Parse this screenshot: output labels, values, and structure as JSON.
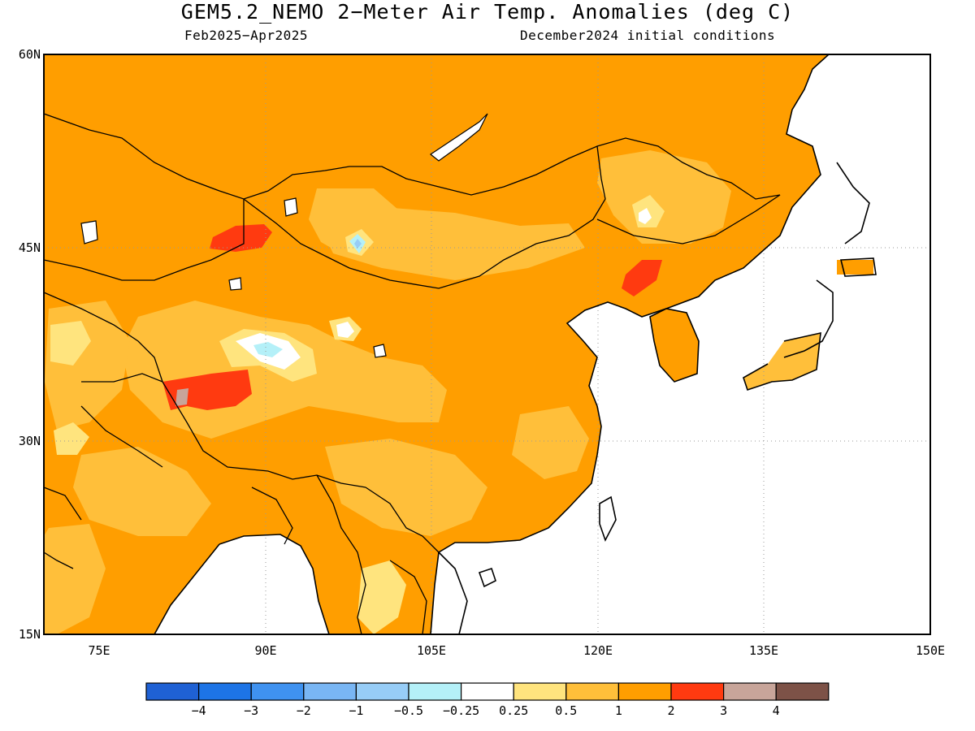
{
  "title": "GEM5.2_NEMO 2−Meter Air Temp. Anomalies (deg C)",
  "subtitle_left": "Feb2025−Apr2025",
  "subtitle_right": "December2024 initial conditions",
  "lat_labels": [
    "60N",
    "45N",
    "30N",
    "15N"
  ],
  "lon_labels": [
    "75E",
    "90E",
    "105E",
    "120E",
    "135E",
    "150E"
  ],
  "colorbar": {
    "colors": [
      "#1f61d4",
      "#1d74e6",
      "#3f92f0",
      "#79b6f4",
      "#97cdf7",
      "#b4f0f8",
      "#ffffff",
      "#ffe47e",
      "#ffbf3a",
      "#ff9e00",
      "#ff3a10",
      "#c8a59a",
      "#7d5247"
    ],
    "labels": [
      "−4",
      "−3",
      "−2",
      "−1",
      "−0.5",
      "−0.25",
      "0.25",
      "0.5",
      "1",
      "2",
      "3",
      "4"
    ]
  },
  "map": {
    "ocean_color": "#ffffff",
    "dominant_anomaly_color": "#ffbf3a",
    "coastline_color": "#000000"
  }
}
